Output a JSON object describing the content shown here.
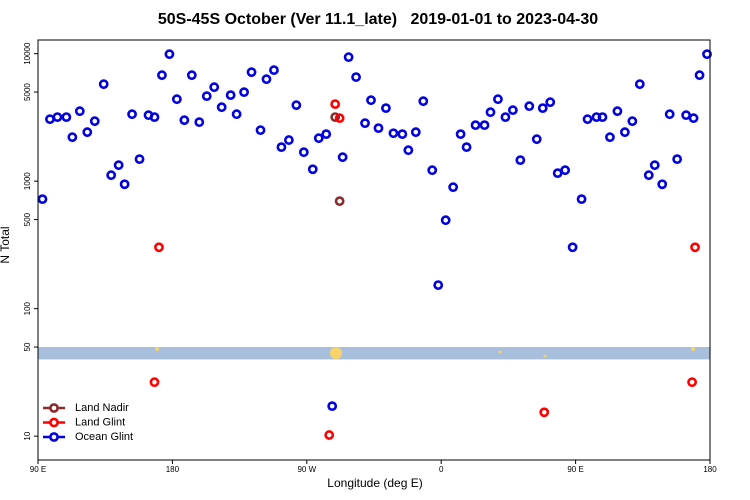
{
  "chart_data": {
    "type": "scatter",
    "title": "50S-45S October (Ver 11.1_late)   2019-01-01 to 2023-04-30",
    "x_label": "Longitude (deg E)",
    "y_label": "N Total",
    "log_y": true,
    "xlim": [
      90,
      540
    ],
    "xticks": [
      {
        "value": 90,
        "label": "90 E"
      },
      180,
      {
        "value": 270,
        "label": "90 W"
      },
      {
        "value": 360,
        "label": "0"
      },
      {
        "value": 450,
        "label": "90 E"
      },
      {
        "value": 540,
        "label": "180"
      }
    ],
    "ylim": [
      6.5,
      12800
    ],
    "yticks": [
      10,
      50,
      100,
      500,
      1000,
      5000,
      10000
    ],
    "band": {
      "ylim": [
        40,
        50
      ],
      "color": "#a7bedc"
    },
    "legend": "bottom-left",
    "series": [
      {
        "name": "Land Nadir",
        "color": "#8b2a2a",
        "x": [
          289,
          292
        ],
        "values": [
          3180,
          697
        ]
      },
      {
        "name": "Land Glint",
        "color": "#ff0000",
        "x": [
          171,
          289,
          292,
          168,
          285,
          429,
          530,
          528
        ],
        "values": [
          303,
          4020,
          3120,
          26.5,
          10.2,
          15.4,
          303,
          26.5
        ]
      },
      {
        "name": "Ocean Glint",
        "color": "#0000e0",
        "x": [
          93,
          98,
          103,
          109,
          113,
          118,
          123,
          128,
          134,
          139,
          144,
          148,
          153,
          158,
          164,
          168,
          173,
          178,
          183,
          188,
          193,
          198,
          203,
          208,
          213,
          219,
          223,
          228,
          233,
          239,
          243,
          248,
          253,
          258,
          263,
          268,
          274,
          278,
          283,
          287,
          294,
          298,
          303,
          309,
          313,
          318,
          323,
          328,
          334,
          338,
          343,
          348,
          354,
          358,
          363,
          368,
          373,
          377,
          383,
          389,
          393,
          398,
          403,
          408,
          413,
          419,
          424,
          428,
          433,
          438,
          443,
          448,
          454,
          458,
          464,
          468,
          473,
          478,
          483,
          488,
          493,
          499,
          503,
          508,
          513,
          518,
          524,
          529,
          533,
          538
        ],
        "values": [
          723,
          3064,
          3180,
          3180,
          2213,
          3540,
          2422,
          2955,
          5765,
          1114,
          1335,
          946,
          3352,
          1489,
          3294,
          3180,
          6780,
          9910,
          4395,
          3008,
          6780,
          2903,
          4645,
          5460,
          3803,
          4730,
          3352,
          4990,
          7160,
          2512,
          6310,
          7430,
          1849,
          2100,
          3945,
          1687,
          1240,
          2174,
          2338,
          17.2,
          1542,
          9390,
          6550,
          2851,
          4315,
          2606,
          3740,
          2377,
          2338,
          1749,
          2422,
          4240,
          1219,
          153,
          494,
          897,
          2338,
          1849,
          2750,
          2750,
          3475,
          4395,
          3180,
          3605,
          1462,
          3875,
          2135,
          3740,
          4165,
          1156,
          1219,
          303,
          723,
          3064,
          3180,
          3180,
          2213,
          3540,
          2422,
          2955,
          5765,
          1114,
          1335,
          946,
          3352,
          1489,
          3294,
          3120,
          6780,
          9910
        ]
      }
    ]
  }
}
